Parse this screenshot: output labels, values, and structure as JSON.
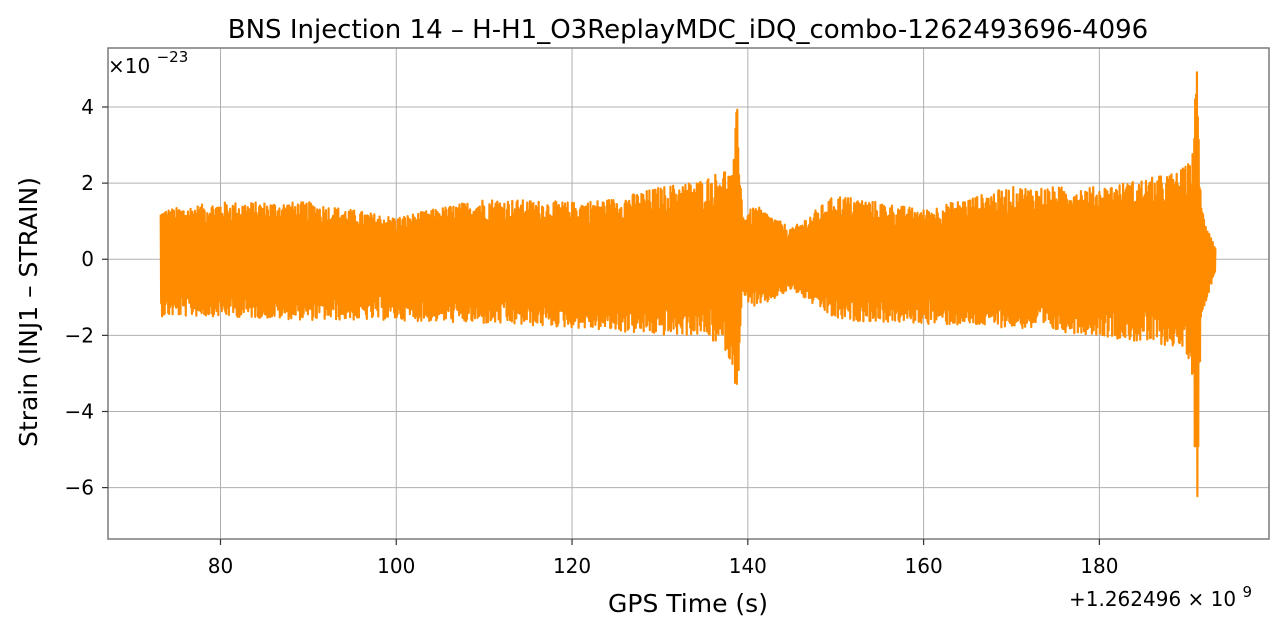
{
  "chart_data": {
    "type": "line",
    "title": "BNS Injection 14 – H-H1_O3ReplayMDC_iDQ_combo-1262493696-4096",
    "xlabel": "GPS Time (s)",
    "ylabel": "Strain (INJ1 – STRAIN)",
    "x_offset_label": "+1.262496 × 10",
    "x_offset_exponent": "9",
    "y_multiplier_label": "×10",
    "y_multiplier_exponent": "−23",
    "xlim": [
      67.2,
      199.3
    ],
    "ylim": [
      -7.35,
      5.55
    ],
    "x_ticks": [
      80,
      100,
      120,
      140,
      160,
      180
    ],
    "x_tick_labels": [
      "80",
      "100",
      "120",
      "140",
      "160",
      "180"
    ],
    "y_ticks": [
      4,
      2,
      0,
      -2,
      -4,
      -6
    ],
    "y_tick_labels": [
      "4",
      "2",
      "0",
      "−2",
      "−4",
      "−6"
    ],
    "grid": true,
    "series": [
      {
        "color": "#ff8c00",
        "envelope": [
          {
            "x": 73.2,
            "upper": 1.3,
            "lower": -1.5
          },
          {
            "x": 80,
            "upper": 1.5,
            "lower": -1.5
          },
          {
            "x": 90,
            "upper": 1.5,
            "lower": -1.6
          },
          {
            "x": 100,
            "upper": 1.1,
            "lower": -1.6
          },
          {
            "x": 110,
            "upper": 1.6,
            "lower": -1.7
          },
          {
            "x": 120,
            "upper": 1.5,
            "lower": -1.8
          },
          {
            "x": 125,
            "upper": 1.6,
            "lower": -1.9
          },
          {
            "x": 130,
            "upper": 1.9,
            "lower": -2.0
          },
          {
            "x": 135,
            "upper": 2.1,
            "lower": -2.0
          },
          {
            "x": 137.5,
            "upper": 2.4,
            "lower": -2.4
          },
          {
            "x": 138.3,
            "upper": 2.2,
            "lower": -2.9
          },
          {
            "x": 138.8,
            "upper": 4.3,
            "lower": -3.6
          },
          {
            "x": 139.4,
            "upper": 1.2,
            "lower": -1.0
          },
          {
            "x": 141,
            "upper": 1.4,
            "lower": -1.3
          },
          {
            "x": 145,
            "upper": 0.8,
            "lower": -0.8
          },
          {
            "x": 150,
            "upper": 1.7,
            "lower": -1.6
          },
          {
            "x": 160,
            "upper": 1.3,
            "lower": -1.7
          },
          {
            "x": 170,
            "upper": 1.9,
            "lower": -1.8
          },
          {
            "x": 180,
            "upper": 1.9,
            "lower": -2.0
          },
          {
            "x": 185,
            "upper": 2.1,
            "lower": -2.2
          },
          {
            "x": 189,
            "upper": 2.3,
            "lower": -2.3
          },
          {
            "x": 190.5,
            "upper": 2.6,
            "lower": -2.7
          },
          {
            "x": 191.1,
            "upper": 5.1,
            "lower": -6.8
          },
          {
            "x": 191.6,
            "upper": 1.4,
            "lower": -1.5
          },
          {
            "x": 193.2,
            "upper": 0.3,
            "lower": -0.3
          }
        ]
      }
    ]
  }
}
